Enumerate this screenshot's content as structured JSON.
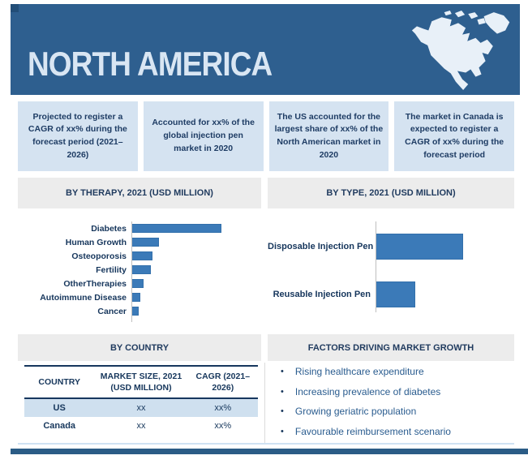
{
  "colors": {
    "header_blue": "#2e5f8f",
    "corner_accent": "#224e78",
    "stat_box_bg": "#d5e3f1",
    "section_bar_bg": "#ececec",
    "bar_fill": "#3b7ab8",
    "dark_text": "#1e3c64",
    "table_highlight_row": "#cfe0ef",
    "bottom_bar": "#2b5c86"
  },
  "header": {
    "title": "NORTH AMERICA",
    "map": "north-america-silhouette"
  },
  "stat_boxes": [
    {
      "text": "Projected to register a CAGR of xx% during the forecast period (2021–2026)"
    },
    {
      "text": "Accounted for xx% of the global injection pen market in 2020"
    },
    {
      "text": "The US accounted for the largest share of xx% of the North American market in 2020"
    },
    {
      "text": "The market in Canada is expected to register a CAGR of xx% during the forecast period"
    }
  ],
  "sections": {
    "therapy_title": "BY THERAPY, 2021 (USD MILLION)",
    "type_title": "BY TYPE, 2021 (USD MILLION)",
    "country_title": "BY COUNTRY",
    "factors_title": "FACTORS DRIVING MARKET GROWTH"
  },
  "chart_data": [
    {
      "type": "bar",
      "orientation": "horizontal",
      "title": "BY THERAPY, 2021 (USD MILLION)",
      "categories": [
        "Diabetes",
        "Human Growth",
        "Osteoporosis",
        "Fertility",
        "OtherTherapies",
        "Autoimmune Disease",
        "Cancer"
      ],
      "values": [
        100,
        29,
        22,
        20,
        12,
        8,
        6
      ],
      "value_note": "relative bar lengths, % of largest bar; numeric labels masked as xx in source",
      "xlabel": "",
      "ylabel": "",
      "grid": false,
      "legend": "none",
      "bar_color": "#3b7ab8"
    },
    {
      "type": "bar",
      "orientation": "horizontal",
      "title": "BY TYPE, 2021 (USD MILLION)",
      "categories": [
        "Disposable Injection Pen",
        "Reusable Injection Pen"
      ],
      "values": [
        100,
        44
      ],
      "value_note": "relative bar lengths, % of largest bar; numeric labels masked as xx in source",
      "xlabel": "",
      "ylabel": "",
      "grid": false,
      "legend": "none",
      "bar_color": "#3b7ab8"
    },
    {
      "type": "table",
      "title": "BY COUNTRY",
      "headers": [
        "COUNTRY",
        "MARKET SIZE, 2021 (USD MILLION)",
        "CAGR (2021–2026)"
      ],
      "rows": [
        [
          "US",
          "xx",
          "xx%"
        ],
        [
          "Canada",
          "xx",
          "xx%"
        ]
      ]
    }
  ],
  "country_table": {
    "headers": [
      "COUNTRY",
      "MARKET SIZE, 2021 (USD MILLION)",
      "CAGR (2021–2026)"
    ],
    "rows": [
      {
        "country": "US",
        "market_size": "xx",
        "cagr": "xx%",
        "highlighted": true
      },
      {
        "country": "Canada",
        "market_size": "xx",
        "cagr": "xx%",
        "highlighted": false
      }
    ]
  },
  "factors": [
    "Rising healthcare expenditure",
    "Increasing prevalence of diabetes",
    "Growing geriatric population",
    "Favourable reimbursement scenario"
  ]
}
